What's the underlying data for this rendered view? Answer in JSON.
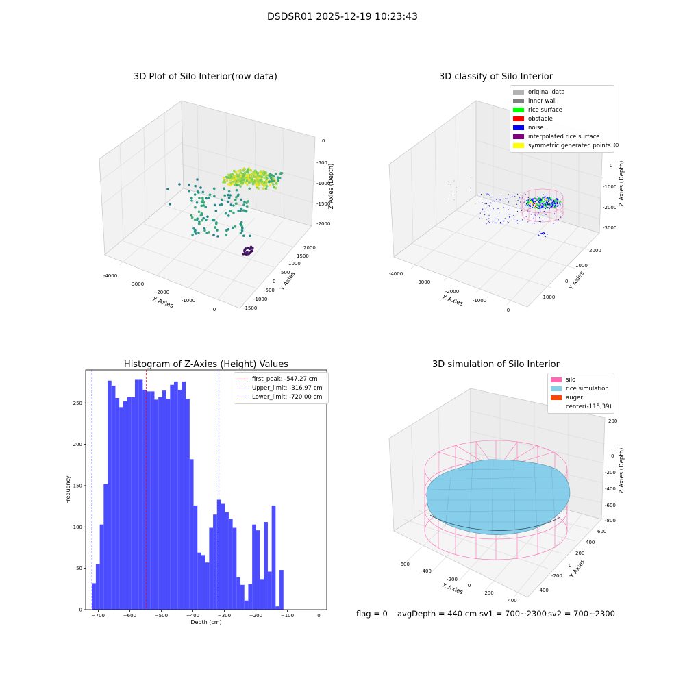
{
  "figure": {
    "suptitle": "DSDSR01 2025-12-19 10:23:43",
    "footer": {
      "flag": "flag = 0",
      "avg_depth": "avgDepth = 440 cm",
      "sv1": "sv1 = 700~2300",
      "sv2": "sv2 = 700~2300"
    }
  },
  "colors": {
    "histogram_bar": "#4c4cff",
    "first_peak_line": "#ff0000",
    "limit_line": "#0000cc",
    "silo_wire": "#ff69b4",
    "rice_surface": "#87ceeb",
    "auger": "#ff4500",
    "pane": "#f2f2f2",
    "grid": "#d9d9d9"
  },
  "chart_data": [
    {
      "type": "scatter",
      "title": "3D Plot of Silo Interior(row data)",
      "xlabel": "X Axies",
      "ylabel": "Y Axies",
      "zlabel": "Z Axies (Depth)",
      "x_ticks": [
        "-4000",
        "-3000",
        "-2000",
        "-1000",
        "0"
      ],
      "y_ticks": [
        "-1500",
        "-1000",
        "-500",
        "0",
        "500",
        "1000",
        "1500",
        "2000"
      ],
      "z_ticks": [
        "0",
        "-500",
        "-1000",
        "-1500",
        "-2000"
      ],
      "colormap": "viridis"
    },
    {
      "type": "scatter",
      "title": "3D classify of Silo Interior",
      "xlabel": "X Axies",
      "ylabel": "Y Axies",
      "zlabel": "Z Axies (Depth)",
      "x_ticks": [
        "-4000",
        "-3000",
        "-2000",
        "-1000",
        "0"
      ],
      "y_ticks": [
        "-1000",
        "0",
        "1000",
        "2000"
      ],
      "z_ticks": [
        "000",
        "0",
        "-1000",
        "-2000",
        "-3000"
      ],
      "legend": [
        {
          "label": "original data",
          "color": "#b3b3b3"
        },
        {
          "label": "inner wall",
          "color": "#808080"
        },
        {
          "label": "rice surface",
          "color": "#00ff00"
        },
        {
          "label": "obstacle",
          "color": "#ff0000"
        },
        {
          "label": "noise",
          "color": "#0000ff"
        },
        {
          "label": "interpolated rice surface",
          "color": "#800080"
        },
        {
          "label": "symmetric generated points",
          "color": "#ffff00"
        }
      ]
    },
    {
      "type": "bar",
      "title": "Histogram of Z-Axies (Height) Values",
      "xlabel": "Depth (cm)",
      "ylabel": "Frequency",
      "xlim": [
        -740,
        25
      ],
      "ylim": [
        0,
        290
      ],
      "x_ticks": [
        -700,
        -600,
        -500,
        -400,
        -300,
        -200,
        -100,
        0
      ],
      "y_ticks": [
        0,
        50,
        100,
        150,
        200,
        250
      ],
      "bin_width": 12.4,
      "bin_start": -720,
      "values": [
        32,
        55,
        103,
        152,
        277,
        271,
        256,
        245,
        252,
        257,
        257,
        278,
        278,
        266,
        264,
        264,
        254,
        257,
        265,
        255,
        272,
        276,
        266,
        276,
        255,
        182,
        126,
        69,
        66,
        57,
        99,
        115,
        133,
        128,
        118,
        110,
        99,
        39,
        30,
        11,
        31,
        103,
        96,
        37,
        106,
        46,
        126,
        4,
        48
      ],
      "vlines": [
        {
          "label": "first_peak: -547.27 cm",
          "x": -547.27,
          "color": "#ff0000"
        },
        {
          "label": "Upper_limit: -316.97 cm",
          "x": -316.97,
          "color": "#0000cc"
        },
        {
          "label": "Lower_limit: -720.00 cm",
          "x": -720.0,
          "color": "#0000cc"
        }
      ]
    },
    {
      "type": "area",
      "title": "3D simulation of Silo Interior",
      "xlabel": "X Axies",
      "ylabel": "Y Axies",
      "zlabel": "Z Axies (Depth)",
      "x_ticks": [
        "-600",
        "-400",
        "-200",
        "0",
        "200",
        "400"
      ],
      "y_ticks": [
        "-400",
        "-200",
        "0",
        "200",
        "400",
        "600"
      ],
      "z_ticks": [
        "200",
        "0",
        "-200",
        "-400",
        "-600",
        "-800"
      ],
      "legend": [
        {
          "label": "silo",
          "color": "#ff69b4"
        },
        {
          "label": "rice simulation",
          "color": "#87ceeb"
        },
        {
          "label": "auger",
          "color": "#ff4500"
        },
        {
          "label": "center(-115,39)",
          "color": ""
        }
      ]
    }
  ]
}
